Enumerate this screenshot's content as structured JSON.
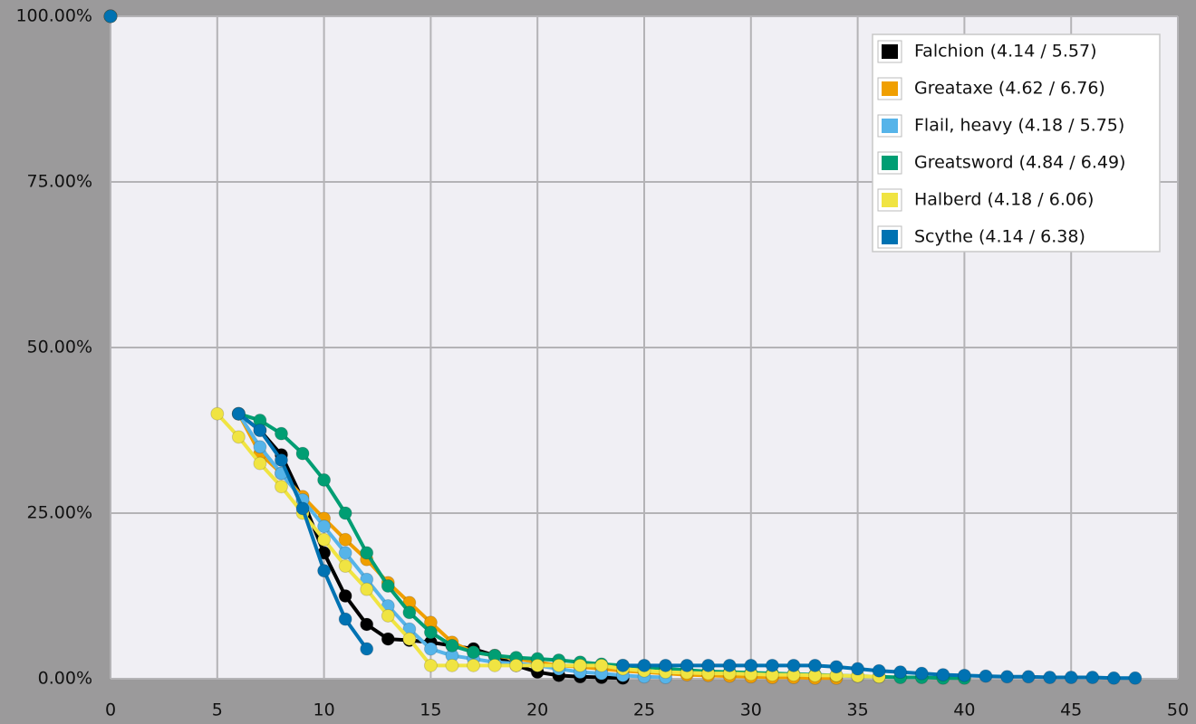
{
  "chart_data": {
    "type": "line",
    "x": [
      0,
      1,
      2,
      3,
      4,
      5,
      6,
      7,
      8,
      9,
      10,
      11,
      12,
      13,
      14,
      15,
      16,
      17,
      18,
      19,
      20,
      21,
      22,
      23,
      24,
      25,
      26,
      27,
      28,
      29,
      30,
      31,
      32,
      33,
      34,
      35,
      36,
      37,
      38,
      39,
      40,
      41,
      42,
      43,
      44,
      45,
      46,
      47,
      48
    ],
    "series": [
      {
        "name": "Falchion (4.14 / 5.57)",
        "color": "#000000",
        "values": [
          100,
          null,
          null,
          null,
          null,
          null,
          40,
          37.5,
          33.8,
          27,
          19,
          12.5,
          8.2,
          6,
          5.8,
          5.5,
          5,
          4.5,
          3.5,
          2,
          1,
          0.5,
          0.3,
          0.2,
          0.1,
          null,
          null,
          null,
          null,
          null,
          null,
          null,
          null,
          null,
          null,
          null,
          null,
          null,
          null,
          null,
          null,
          null,
          null,
          null,
          null,
          null,
          null,
          null,
          null
        ]
      },
      {
        "name": "Greataxe (4.62 / 6.76)",
        "color": "#f09f00",
        "values": [
          100,
          null,
          null,
          null,
          null,
          null,
          40,
          34,
          31,
          27.5,
          24.2,
          21,
          18,
          14.5,
          11.5,
          8.5,
          5.5,
          4,
          3.5,
          3,
          2.5,
          2,
          1.8,
          1.5,
          1.2,
          1,
          0.8,
          0.6,
          0.5,
          0.4,
          0.3,
          0.2,
          0.2,
          0.1,
          0.1,
          null,
          null,
          null,
          null,
          null,
          null,
          null,
          null,
          null,
          null,
          null,
          null,
          null,
          null
        ]
      },
      {
        "name": "Flail, heavy (4.18 / 5.75)",
        "color": "#56b4e9",
        "values": [
          100,
          null,
          null,
          null,
          null,
          null,
          40,
          35,
          31,
          27,
          23,
          19,
          15,
          11,
          7.5,
          4.5,
          3.5,
          3,
          2.5,
          2.3,
          2,
          1.5,
          1,
          0.8,
          0.5,
          0.3,
          0.2,
          null,
          null,
          null,
          null,
          null,
          null,
          null,
          null,
          null,
          null,
          null,
          null,
          null,
          null,
          null,
          null,
          null,
          null,
          null,
          null,
          null,
          null
        ]
      },
      {
        "name": "Greatsword (4.84 / 6.49)",
        "color": "#009e73",
        "values": [
          100,
          null,
          null,
          null,
          null,
          null,
          40,
          39,
          37,
          34,
          30,
          25,
          19,
          14,
          10,
          7,
          5,
          4,
          3.5,
          3.2,
          3,
          2.8,
          2.5,
          2.2,
          2,
          1.8,
          1.5,
          1.3,
          1.1,
          1,
          0.9,
          0.8,
          0.7,
          0.6,
          0.5,
          0.4,
          0.3,
          0.2,
          0.2,
          0.1,
          0.1,
          null,
          null,
          null,
          null,
          null,
          null,
          null,
          null
        ]
      },
      {
        "name": "Halberd (4.18 / 6.06)",
        "color": "#f0e442",
        "values": [
          100,
          null,
          null,
          null,
          null,
          40,
          36.5,
          32.5,
          29,
          25,
          21,
          17,
          13.5,
          9.5,
          6,
          2,
          2,
          2,
          2,
          2,
          2,
          2,
          2,
          2,
          1.5,
          1.2,
          1,
          0.9,
          0.8,
          0.8,
          0.7,
          0.6,
          0.6,
          0.5,
          0.5,
          0.4,
          0.3,
          null,
          null,
          null,
          null,
          null,
          null,
          null,
          null,
          null,
          null,
          null,
          null
        ]
      },
      {
        "name": "Scythe (4.14 / 6.38)",
        "color": "#0072b2",
        "values": [
          100,
          null,
          null,
          null,
          null,
          null,
          40,
          37.5,
          33,
          25.7,
          16.3,
          9,
          4.5,
          null,
          null,
          null,
          null,
          null,
          null,
          null,
          null,
          null,
          null,
          null,
          2,
          2,
          2,
          2,
          2,
          2,
          2,
          2,
          2,
          2,
          1.8,
          1.5,
          1.2,
          1,
          0.8,
          0.6,
          0.5,
          0.4,
          0.3,
          0.3,
          0.2,
          0.2,
          0.2,
          0.1,
          0.1
        ]
      }
    ],
    "xlim": [
      0,
      50
    ],
    "xticks": [
      0,
      5,
      10,
      15,
      20,
      25,
      30,
      35,
      40,
      45,
      50
    ],
    "ylim": [
      0,
      100
    ],
    "yticks": [
      {
        "value": 0,
        "label": "0.00%"
      },
      {
        "value": 25,
        "label": "25.00%"
      },
      {
        "value": 50,
        "label": "50.00%"
      },
      {
        "value": 75,
        "label": "75.00%"
      },
      {
        "value": 100,
        "label": "100.00%"
      }
    ],
    "grid": true,
    "legend": "top-right"
  }
}
